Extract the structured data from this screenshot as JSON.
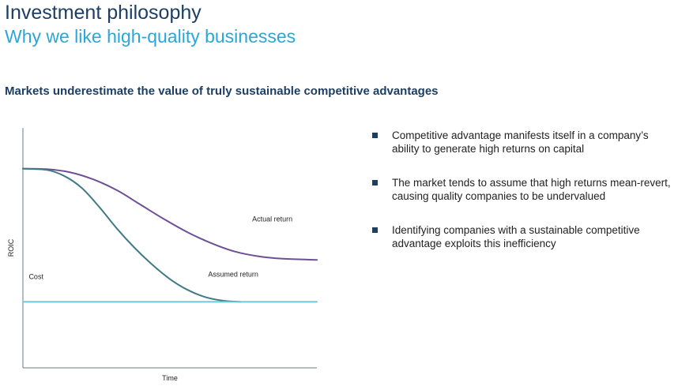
{
  "header": {
    "title": "Investment philosophy",
    "subtitle": "Why we like high-quality businesses"
  },
  "heading": "Markets underestimate the value of truly sustainable competitive advantages",
  "bullets": [
    "Competitive advantage manifests itself in a company’s ability to generate high returns on capital",
    "The market tends to assume that high returns mean-revert, causing quality companies to be undervalued",
    "Identifying companies with a sustainable competitive advantage exploits this inefficiency"
  ],
  "colors": {
    "title": "#1c3f63",
    "subtitle": "#2aa7d8",
    "actual_return": "#6e4f96",
    "assumed_return": "#3f7a86",
    "cost": "#6fc8d8",
    "bullet": "#1c3f63"
  },
  "chart_data": {
    "type": "line",
    "xlabel": "Time",
    "ylabel": "ROIC",
    "xlim": [
      0,
      100
    ],
    "ylim": [
      0,
      100
    ],
    "grid": false,
    "series": [
      {
        "name": "Actual return",
        "color": "#6e4f96",
        "points": [
          [
            0,
            83
          ],
          [
            8,
            82.8
          ],
          [
            16,
            81.5
          ],
          [
            24,
            78.5
          ],
          [
            32,
            74
          ],
          [
            40,
            68
          ],
          [
            48,
            62
          ],
          [
            56,
            56.5
          ],
          [
            64,
            52
          ],
          [
            72,
            48.5
          ],
          [
            80,
            46.5
          ],
          [
            88,
            45.5
          ],
          [
            100,
            45
          ]
        ]
      },
      {
        "name": "Assumed return",
        "color": "#3f7a86",
        "points": [
          [
            0,
            83
          ],
          [
            8,
            82.5
          ],
          [
            14,
            80
          ],
          [
            20,
            75
          ],
          [
            26,
            67
          ],
          [
            32,
            58
          ],
          [
            38,
            50
          ],
          [
            44,
            43
          ],
          [
            50,
            37
          ],
          [
            56,
            32.5
          ],
          [
            62,
            29.5
          ],
          [
            68,
            28
          ],
          [
            74,
            27.5
          ]
        ]
      },
      {
        "name": "Cost",
        "color": "#6fc8d8",
        "points": [
          [
            0,
            27.5
          ],
          [
            100,
            27.5
          ]
        ]
      }
    ],
    "annotations": [
      {
        "text": "Actual return",
        "x": 78,
        "y": 61
      },
      {
        "text": "Assumed return",
        "x": 63,
        "y": 38
      },
      {
        "text": "Cost",
        "x": 2,
        "y": 37
      }
    ]
  }
}
